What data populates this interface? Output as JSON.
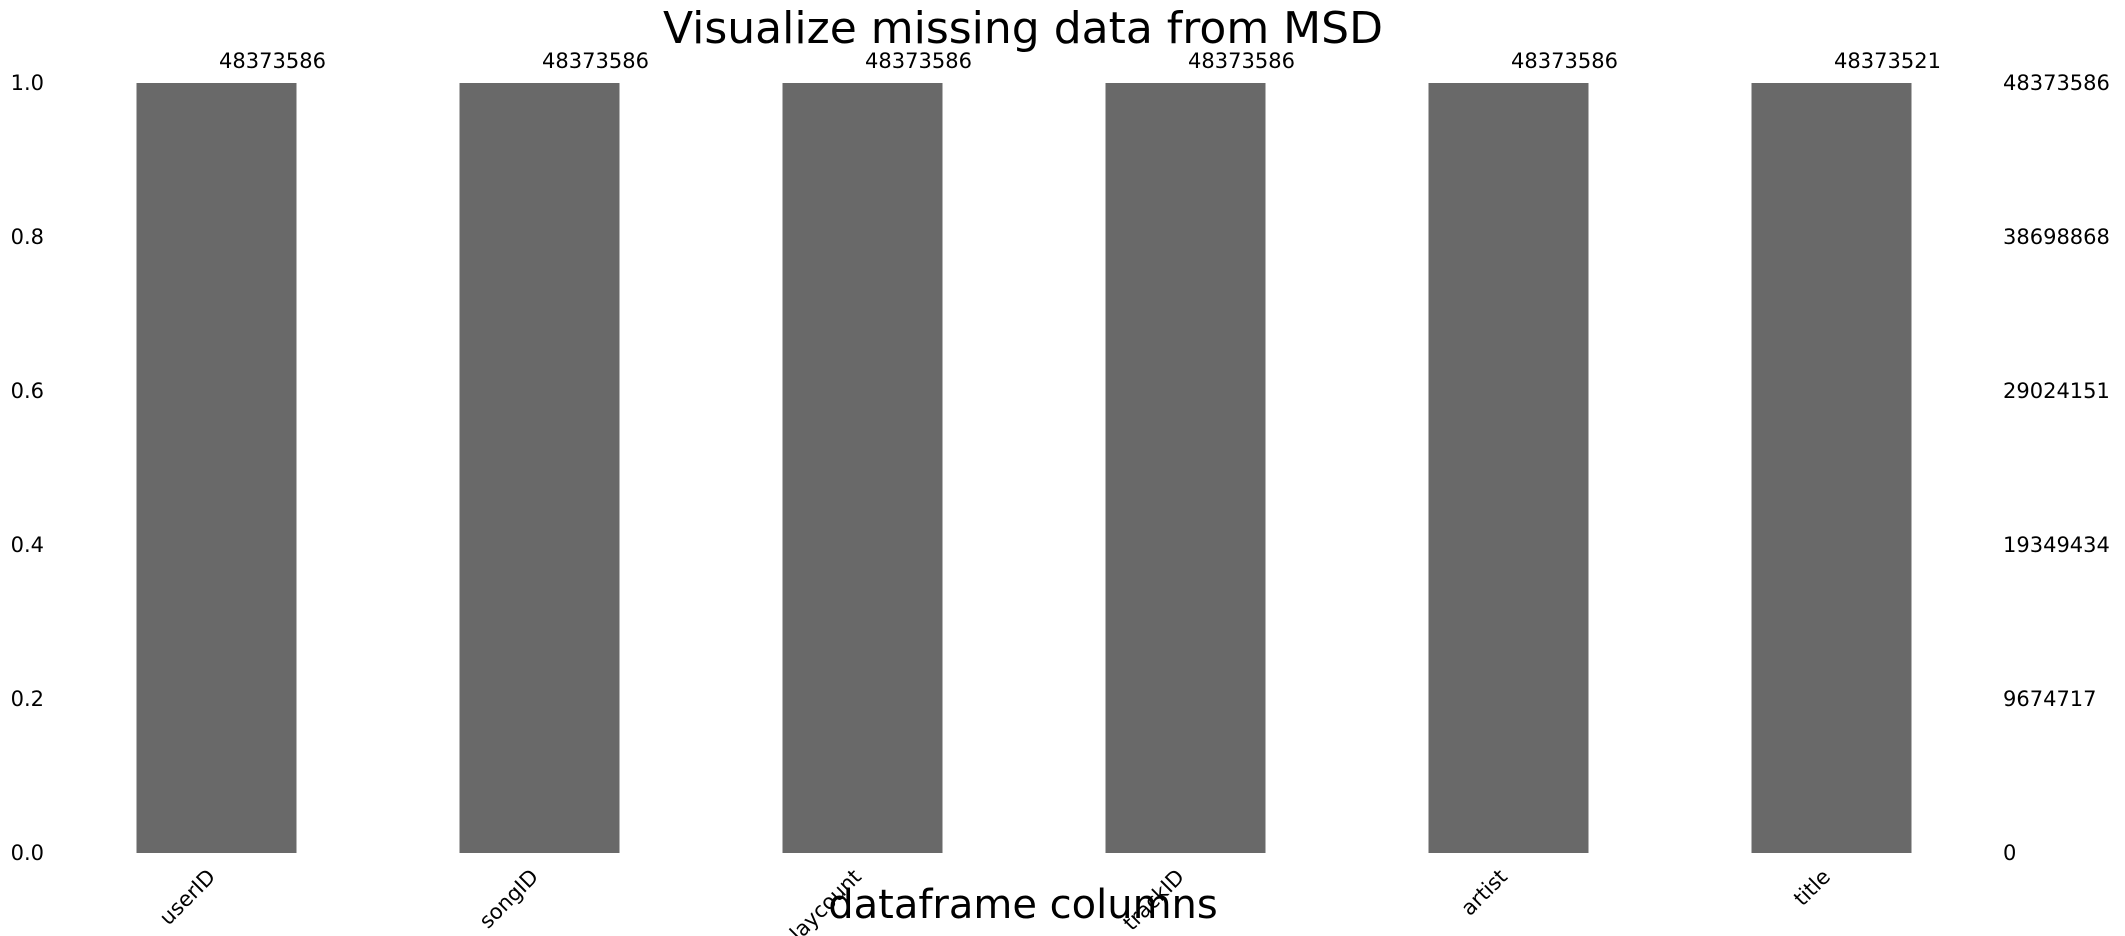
{
  "chart_data": {
    "type": "bar",
    "title": "Visualize missing data from MSD",
    "xlabel": "dataframe columns",
    "ylabel": "",
    "categories": [
      "userID",
      "songID",
      "playcount",
      "trackID",
      "artist",
      "title"
    ],
    "values": [
      1.0,
      1.0,
      1.0,
      1.0,
      1.0,
      0.999998656
    ],
    "counts": [
      "48373586",
      "48373586",
      "48373586",
      "48373586",
      "48373586",
      "48373521"
    ],
    "ylim": [
      0,
      1.0
    ],
    "left_ticks": [
      "0.0",
      "0.2",
      "0.4",
      "0.6",
      "0.8",
      "1.0"
    ],
    "right_ticks": [
      "0",
      "9674717",
      "19349434",
      "29024151",
      "38698868",
      "48373586"
    ],
    "bar_color": "#696969",
    "grid": false,
    "legend": "none"
  }
}
